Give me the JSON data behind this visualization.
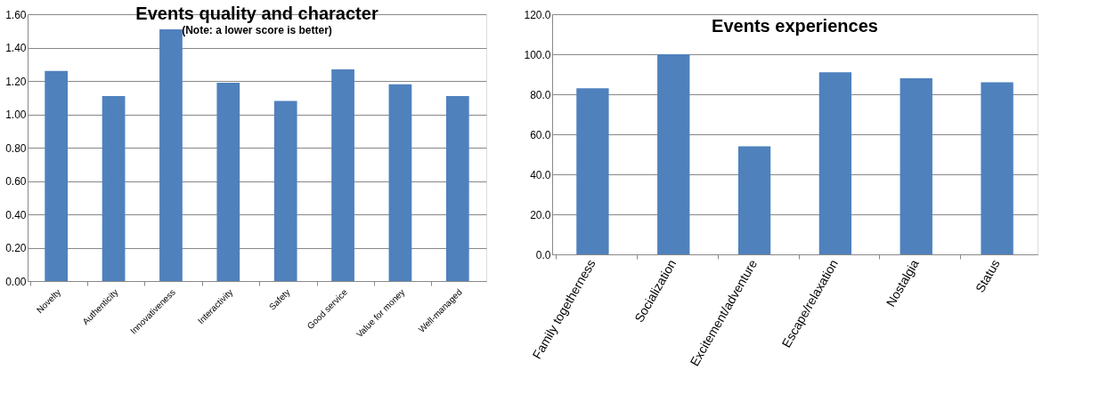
{
  "chart_data": [
    {
      "type": "bar",
      "title": "Events quality and character",
      "subtitle": "(Note: a lower score is better)",
      "categories": [
        "Novelty",
        "Authenticity",
        "Innovativeness",
        "Interactivity",
        "Safety",
        "Good service",
        "Value for money",
        "Well-managed"
      ],
      "values": [
        1.26,
        1.11,
        1.51,
        1.19,
        1.08,
        1.27,
        1.18,
        1.11
      ],
      "color": "#4f81bd",
      "ylim": [
        0,
        1.6
      ],
      "yticks": [
        {
          "value": 0,
          "label": "0.00"
        },
        {
          "value": 0.2,
          "label": "0.20"
        },
        {
          "value": 0.4,
          "label": "0.40"
        },
        {
          "value": 0.6,
          "label": "0.60"
        },
        {
          "value": 0.8,
          "label": "0.80"
        },
        {
          "value": 1.0,
          "label": "1.00"
        },
        {
          "value": 1.2,
          "label": "1.20"
        },
        {
          "value": 1.4,
          "label": "1.40"
        },
        {
          "value": 1.6,
          "label": "1.60"
        }
      ],
      "grid": "y"
    },
    {
      "type": "bar",
      "title": "Events experiences",
      "categories": [
        "Family togetherness",
        "Socialization",
        "Excitement/adventure",
        "Escape/relaxation",
        "Nostalgia",
        "Status"
      ],
      "values": [
        83,
        100,
        54,
        91,
        88,
        86
      ],
      "color": "#4f81bd",
      "ylim": [
        0,
        120
      ],
      "yticks": [
        {
          "value": 0,
          "label": "0.0"
        },
        {
          "value": 20,
          "label": "20.0"
        },
        {
          "value": 40,
          "label": "40.0"
        },
        {
          "value": 60,
          "label": "60.0"
        },
        {
          "value": 80,
          "label": "80.0"
        },
        {
          "value": 100,
          "label": "100.0"
        },
        {
          "value": 120,
          "label": "120.0"
        }
      ],
      "grid": "y"
    }
  ]
}
